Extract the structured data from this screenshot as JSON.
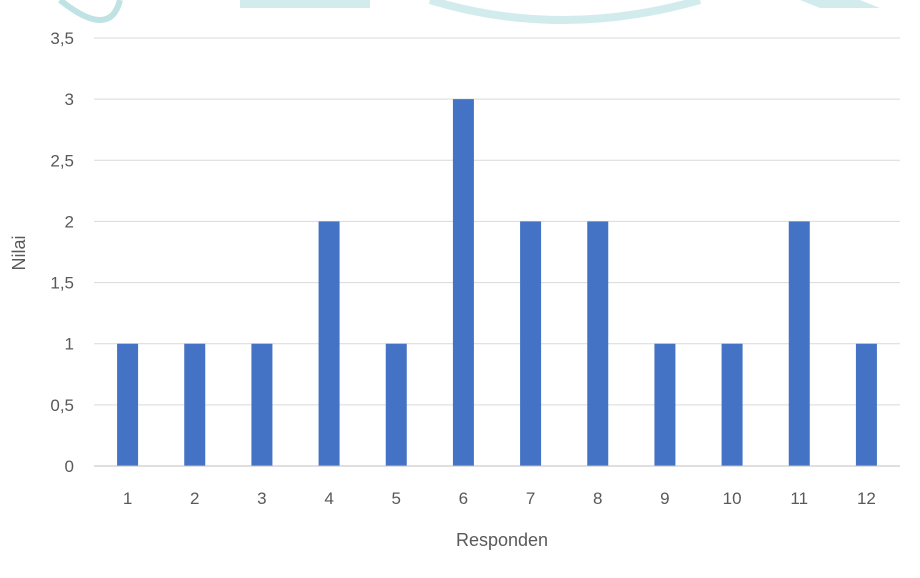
{
  "colors": {
    "bar": "#4472C4",
    "grid": "#D9D9D9",
    "axis_line": "#BFBFBF",
    "text": "#595959",
    "watermark": "#7FC6CB"
  },
  "chart_data": {
    "type": "bar",
    "title": "",
    "xlabel": "Responden",
    "ylabel": "Nilai",
    "categories": [
      "1",
      "2",
      "3",
      "4",
      "5",
      "6",
      "7",
      "8",
      "9",
      "10",
      "11",
      "12"
    ],
    "values": [
      1,
      1,
      1,
      2,
      1,
      3,
      2,
      2,
      1,
      1,
      2,
      1
    ],
    "ylim": [
      0,
      3.5
    ],
    "yticks": [
      0,
      0.5,
      1,
      1.5,
      2,
      2.5,
      3,
      3.5
    ],
    "ytick_labels": [
      "0",
      "0,5",
      "1",
      "1,5",
      "2",
      "2,5",
      "3",
      "3,5"
    ],
    "grid": true,
    "legend": "none"
  }
}
